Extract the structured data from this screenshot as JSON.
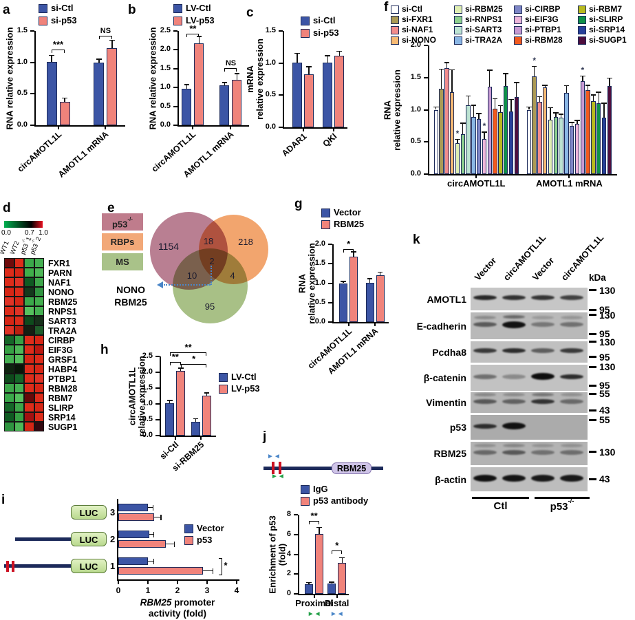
{
  "chart_data": [
    {
      "panel": "a",
      "type": "bar",
      "ylabel_lines": [
        "RNA relative expression"
      ],
      "ymax": 1.5,
      "yticks": [
        "0.0",
        "0.5",
        "1.0",
        "1.5"
      ],
      "series": [
        {
          "name": "si-Ctl",
          "color": "#3c55a5"
        },
        {
          "name": "si-p53",
          "color": "#f0837b"
        }
      ],
      "groups": [
        {
          "label": "circAMOTL1L",
          "values": [
            1.01,
            0.37
          ],
          "errors": [
            0.1,
            0.06
          ]
        },
        {
          "label": "AMOTL1 mRNA",
          "values": [
            1.0,
            1.23
          ],
          "errors": [
            0.05,
            0.12
          ]
        }
      ],
      "brackets": [
        {
          "a": [
            0,
            0
          ],
          "b": [
            0,
            1
          ],
          "y": 1.2,
          "text": "***"
        },
        {
          "a": [
            1,
            0
          ],
          "b": [
            1,
            1
          ],
          "y": 1.42,
          "text": "NS"
        }
      ]
    },
    {
      "panel": "b",
      "type": "bar",
      "ylabel_lines": [
        "RNA relative expression"
      ],
      "ymax": 2.5,
      "yticks": [
        "0.0",
        "0.5",
        "1.0",
        "1.5",
        "2.0",
        "2.5"
      ],
      "series": [
        {
          "name": "LV-Ctl",
          "color": "#3c55a5"
        },
        {
          "name": "LV-p53",
          "color": "#f0837b"
        }
      ],
      "groups": [
        {
          "label": "circAMOTL1L",
          "values": [
            0.97,
            2.17
          ],
          "errors": [
            0.1,
            0.18
          ]
        },
        {
          "label": "AMOTL1 mRNA",
          "values": [
            1.05,
            1.2
          ],
          "errors": [
            0.08,
            0.17
          ]
        }
      ],
      "brackets": [
        {
          "a": [
            0,
            0
          ],
          "b": [
            0,
            1
          ],
          "y": 2.42,
          "text": "**"
        },
        {
          "a": [
            1,
            0
          ],
          "b": [
            1,
            1
          ],
          "y": 1.52,
          "text": "NS"
        }
      ]
    },
    {
      "panel": "c",
      "type": "bar",
      "ylabel_lines": [
        "mRNA",
        "relative expression"
      ],
      "ymax": 1.5,
      "yticks": [
        "0.0",
        "0.5",
        "1.0",
        "1.5"
      ],
      "series": [
        {
          "name": "si-Ctl",
          "color": "#3c55a5"
        },
        {
          "name": "si-p53",
          "color": "#f0837b"
        }
      ],
      "groups": [
        {
          "label": "ADAR1",
          "values": [
            1.01,
            0.83
          ],
          "errors": [
            0.14,
            0.11
          ]
        },
        {
          "label": "QKI",
          "values": [
            1.01,
            1.11
          ],
          "errors": [
            0.1,
            0.07
          ]
        }
      ],
      "brackets": []
    },
    {
      "panel": "d",
      "type": "heatmap",
      "scale": {
        "min": "0.0",
        "mid": "0.7",
        "max": "1.0",
        "gradient": [
          "#00b050",
          "#000000",
          "#e81020"
        ]
      },
      "columns": [
        "WT1",
        "WT2",
        "p53-/-1",
        "p53-/-2"
      ],
      "rows": [
        {
          "name": "FXR1",
          "cells": [
            "#6e0b0b",
            "#dd2c1a",
            "#3aa84a",
            "#45b052"
          ]
        },
        {
          "name": "PARN",
          "cells": [
            "#dd2c1a",
            "#d62615",
            "#3fae4a",
            "#4eb858"
          ]
        },
        {
          "name": "NAF1",
          "cells": [
            "#dd2c1a",
            "#e03326",
            "#0f5a22",
            "#3da64a"
          ]
        },
        {
          "name": "NONO",
          "cells": [
            "#d62615",
            "#dd2c1a",
            "#13391c",
            "#2f9440"
          ]
        },
        {
          "name": "RBM25",
          "cells": [
            "#e03326",
            "#d62615",
            "#3aa84a",
            "#42ae4e"
          ]
        },
        {
          "name": "RNPS1",
          "cells": [
            "#dd2c1a",
            "#e03326",
            "#55c05e",
            "#45b052"
          ]
        },
        {
          "name": "SART3",
          "cells": [
            "#d62615",
            "#dd2c1a",
            "#0e4a1c",
            "#16301a"
          ]
        },
        {
          "name": "TRA2A",
          "cells": [
            "#e03326",
            "#bb1f10",
            "#151f12",
            "#1f5c2a"
          ]
        },
        {
          "name": "CIRBP",
          "cells": [
            "#156628",
            "#36a044",
            "#dd2c1a",
            "#d62615"
          ]
        },
        {
          "name": "EIF3G",
          "cells": [
            "#36a044",
            "#4eb858",
            "#dd2c1a",
            "#bb1810"
          ]
        },
        {
          "name": "GRSF1",
          "cells": [
            "#45b052",
            "#55c05e",
            "#d62615",
            "#dd2c1a"
          ]
        },
        {
          "name": "HABP4",
          "cells": [
            "#0e2410",
            "#081608",
            "#dd2c1a",
            "#d62615"
          ]
        },
        {
          "name": "PTBP1",
          "cells": [
            "#0e4a1c",
            "#156628",
            "#dd2c1a",
            "#e03326"
          ]
        },
        {
          "name": "RBM28",
          "cells": [
            "#3da64a",
            "#45b052",
            "#dd2c1a",
            "#d62615"
          ]
        },
        {
          "name": "RBM7",
          "cells": [
            "#3aa84a",
            "#55c05e",
            "#660808",
            "#dd2c1a"
          ]
        },
        {
          "name": "SLIRP",
          "cells": [
            "#156628",
            "#3da64a",
            "#dd2c1a",
            "#d62615"
          ]
        },
        {
          "name": "SRP14",
          "cells": [
            "#0f5a22",
            "#36a044",
            "#a31010",
            "#dd2c1a"
          ]
        },
        {
          "name": "SUGP1",
          "cells": [
            "#2f9440",
            "#4eb858",
            "#d62615",
            "#330810"
          ]
        }
      ]
    },
    {
      "panel": "e",
      "type": "venn",
      "sets": [
        {
          "label": "p53-/-",
          "color": "#bf7c8c",
          "circle": "#b5788c"
        },
        {
          "label": "RBPs",
          "color": "#f2a878",
          "circle": "#f2a066"
        },
        {
          "label": "MS",
          "color": "#a9c289",
          "circle": "#a3bd80"
        }
      ],
      "regions": {
        "p53_only": "1154",
        "p53_rbps": "18",
        "rbps_only": "218",
        "center": "2",
        "p53_ms": "10",
        "rbps_ms": "4",
        "ms_only": "95"
      },
      "callout": [
        "NONO",
        "RBM25"
      ]
    },
    {
      "panel": "f",
      "type": "bar",
      "ylabel_lines": [
        "RNA",
        "relative expression"
      ],
      "ymax": 2.0,
      "yticks": [
        "0.0",
        "0.5",
        "1.0",
        "1.5",
        "2.0"
      ],
      "series": [
        {
          "name": "si-Ctl",
          "color": "#ffffff"
        },
        {
          "name": "si-FXR1",
          "color": "#ab9a55"
        },
        {
          "name": "si-NAF1",
          "color": "#f28c8c"
        },
        {
          "name": "si-NONO",
          "color": "#f7ba74"
        },
        {
          "name": "si-RBM25",
          "color": "#dfeeb2"
        },
        {
          "name": "si-RNPS1",
          "color": "#8ed08e"
        },
        {
          "name": "si-SART3",
          "color": "#bce3d2"
        },
        {
          "name": "si-TRA2A",
          "color": "#8ab6e4"
        },
        {
          "name": "si-CIRBP",
          "color": "#7e86c6"
        },
        {
          "name": "si-EIF3G",
          "color": "#eeb6da"
        },
        {
          "name": "si-PTBP1",
          "color": "#c79ad2"
        },
        {
          "name": "si-RBM28",
          "color": "#f25a1e"
        },
        {
          "name": "si-RBM7",
          "color": "#b8ba1e"
        },
        {
          "name": "si-SLIRP",
          "color": "#0f9148"
        },
        {
          "name": "si-SRP14",
          "color": "#27409b"
        },
        {
          "name": "si-SUGP1",
          "color": "#4d0e3e"
        }
      ],
      "groups": [
        {
          "label": "circAMOTL1L",
          "values": [
            1.0,
            1.33,
            1.65,
            1.27,
            0.48,
            0.62,
            1.07,
            0.89,
            0.86,
            0.55,
            1.36,
            1.02,
            0.96,
            1.37,
            0.97,
            1.2
          ],
          "errors": [
            0.04,
            0.3,
            0.08,
            0.35,
            0.06,
            0.17,
            0.14,
            0.18,
            0.08,
            0.1,
            0.25,
            0.15,
            0.1,
            0.19,
            0.19,
            0.22
          ]
        },
        {
          "label": "AMOTL1 mRNA",
          "values": [
            1.0,
            1.52,
            1.12,
            1.35,
            0.85,
            0.89,
            0.88,
            1.26,
            0.75,
            0.78,
            1.44,
            1.3,
            1.13,
            1.1,
            0.88,
            1.37
          ],
          "errors": [
            0.04,
            0.15,
            0.08,
            0.03,
            0.18,
            0.06,
            0.05,
            0.11,
            0.05,
            0.05,
            0.08,
            0.08,
            0.1,
            0.17,
            0.22,
            0.12
          ]
        }
      ],
      "stars": [
        {
          "group": 0,
          "bar": 4,
          "text": "*"
        },
        {
          "group": 0,
          "bar": 9,
          "text": "*"
        },
        {
          "group": 1,
          "bar": 1,
          "text": "*"
        },
        {
          "group": 1,
          "bar": 10,
          "text": "*"
        }
      ],
      "brackets": []
    },
    {
      "panel": "g",
      "type": "bar",
      "ylabel_lines": [
        "RNA",
        "relative expression"
      ],
      "ymax": 2.0,
      "yticks": [
        "0.0",
        "0.5",
        "1.0",
        "1.5",
        "2.0"
      ],
      "series": [
        {
          "name": "Vector",
          "color": "#3c55a5"
        },
        {
          "name": "RBM25",
          "color": "#f0837b"
        }
      ],
      "groups": [
        {
          "label": "circAMOTL1L",
          "values": [
            1.0,
            1.68
          ],
          "errors": [
            0.04,
            0.12
          ]
        },
        {
          "label": "AMOTL1 mRNA",
          "values": [
            1.01,
            1.21
          ],
          "errors": [
            0.1,
            0.07
          ]
        }
      ],
      "brackets": [
        {
          "a": [
            0,
            0
          ],
          "b": [
            0,
            1
          ],
          "y": 1.88,
          "text": "*"
        }
      ]
    },
    {
      "panel": "h",
      "type": "bar",
      "ylabel_lines": [
        "circAMOTL1L",
        "relative expression"
      ],
      "ymax": 2.5,
      "yticks": [
        "0.0",
        "0.5",
        "1.0",
        "1.5",
        "2.0",
        "2.5"
      ],
      "series": [
        {
          "name": "LV-Ctl",
          "color": "#3c55a5"
        },
        {
          "name": "LV-p53",
          "color": "#f0837b"
        }
      ],
      "groups": [
        {
          "label": "si-Ctl",
          "values": [
            1.02,
            2.05
          ],
          "errors": [
            0.08,
            0.08
          ]
        },
        {
          "label": "si-RBM25",
          "values": [
            0.43,
            1.27
          ],
          "errors": [
            0.1,
            0.07
          ]
        }
      ],
      "brackets": [
        {
          "a": [
            0,
            0
          ],
          "b": [
            0,
            1
          ],
          "y": 2.32,
          "text": "**"
        },
        {
          "a": [
            0,
            0
          ],
          "b": [
            1,
            1
          ],
          "y": 2.62,
          "text": "**"
        },
        {
          "a": [
            0,
            1
          ],
          "b": [
            1,
            1
          ],
          "y": 2.26,
          "text": "*"
        }
      ]
    },
    {
      "panel": "i",
      "type": "bar-horizontal",
      "xmax": 4,
      "xticks": [
        "0",
        "1",
        "2",
        "3",
        "4"
      ],
      "xlabel_italic": "RBM25",
      "xlabel_line1_rest": " promoter",
      "xlabel_line2": "activity (fold)",
      "luc_label": "LUC",
      "series": [
        {
          "name": "Vector",
          "color": "#3c55a5"
        },
        {
          "name": "p53",
          "color": "#f0837b"
        }
      ],
      "groups": [
        {
          "label": "3",
          "construct": "luc",
          "values": [
            1.0,
            1.2
          ],
          "errors": [
            0.18,
            0.25
          ]
        },
        {
          "label": "2",
          "construct": "line-luc",
          "values": [
            1.05,
            1.6
          ],
          "errors": [
            0.15,
            0.3
          ]
        },
        {
          "label": "1",
          "construct": "sites-line-luc",
          "values": [
            1.0,
            2.85
          ],
          "errors": [
            0.2,
            0.35
          ],
          "sig": "*"
        }
      ]
    },
    {
      "panel": "j",
      "type": "bar",
      "ylabel_lines": [
        "Enrichment of p53",
        "(fold)"
      ],
      "ymax": 8,
      "yticks": [
        "0",
        "2",
        "4",
        "6",
        "8"
      ],
      "schematic": {
        "gene_label": "RBM25"
      },
      "series": [
        {
          "name": "IgG",
          "color": "#3c55a5"
        },
        {
          "name": "p53 antibody",
          "color": "#f0837b"
        }
      ],
      "groups": [
        {
          "label": "Proximal",
          "marker": "green",
          "values": [
            1.0,
            6.05
          ],
          "errors": [
            0.12,
            0.65
          ]
        },
        {
          "label": "Distal",
          "marker": "blue",
          "values": [
            1.05,
            3.15
          ],
          "errors": [
            0.12,
            0.5
          ]
        }
      ],
      "brackets": [
        {
          "a": [
            0,
            0
          ],
          "b": [
            0,
            1
          ],
          "y": 7.4,
          "text": "**"
        },
        {
          "a": [
            1,
            0
          ],
          "b": [
            1,
            1
          ],
          "y": 4.35,
          "text": "*"
        }
      ]
    },
    {
      "panel": "k",
      "type": "western-blot",
      "unit_label": "kDa",
      "lanes": [
        "Vector",
        "circAMOTL1L",
        "Vector",
        "circAMOTL1L"
      ],
      "group_labels": [
        "Ctl",
        "p53-/-"
      ],
      "rows": [
        {
          "label": "AMOTL1",
          "bg": "#c6c6c6",
          "double": false,
          "lanes": [
            0.85,
            0.8,
            0.78,
            0.72
          ],
          "markers": [
            {
              "kda": "130",
              "t": 0.12
            },
            {
              "kda": "95",
              "t": 0.97
            }
          ]
        },
        {
          "label": "E-cadherin",
          "bg": "#b9b9b9",
          "double": true,
          "lanes": [
            0.55,
            0.97,
            0.38,
            0.42
          ],
          "markers": [
            {
              "kda": "130",
              "t": 0.1
            },
            {
              "kda": "95",
              "t": 0.8
            }
          ]
        },
        {
          "label": "Pcdha8",
          "bg": "#c0c0c0",
          "double": false,
          "lanes": [
            0.75,
            0.82,
            0.55,
            0.75
          ],
          "markers": [
            {
              "kda": "130",
              "t": 0.03
            },
            {
              "kda": "95",
              "t": 0.74
            }
          ]
        },
        {
          "label": "β-catenin",
          "bg": "#c2c2c2",
          "double": false,
          "lanes": [
            0.45,
            0.3,
            1.0,
            0.82
          ],
          "markers": [
            {
              "kda": "130",
              "t": 0.08
            },
            {
              "kda": "95",
              "t": 0.79
            }
          ]
        },
        {
          "label": "Vimentin",
          "bg": "#b5b5b5",
          "double": true,
          "lanes": [
            0.55,
            0.5,
            0.78,
            0.45
          ],
          "markers": [
            {
              "kda": "55",
              "t": 0.07
            },
            {
              "kda": "43",
              "t": 0.87
            }
          ]
        },
        {
          "label": "p53",
          "bg": "#ababab",
          "double": false,
          "lanes": [
            0.8,
            0.97,
            0,
            0
          ],
          "markers": [
            {
              "kda": "55",
              "t": 0.2
            }
          ]
        },
        {
          "label": "RBM25",
          "bg": "#b3b3b3",
          "double": true,
          "lanes": [
            0.45,
            0.55,
            0.4,
            0.42
          ],
          "markers": [
            {
              "kda": "130",
              "t": 0.44
            }
          ]
        },
        {
          "label": "β-actin",
          "bg": "#bdbdbd",
          "double": false,
          "lanes": [
            0.97,
            0.95,
            0.93,
            0.93
          ],
          "markers": [
            {
              "kda": "43",
              "t": 0.49
            }
          ]
        }
      ]
    }
  ]
}
